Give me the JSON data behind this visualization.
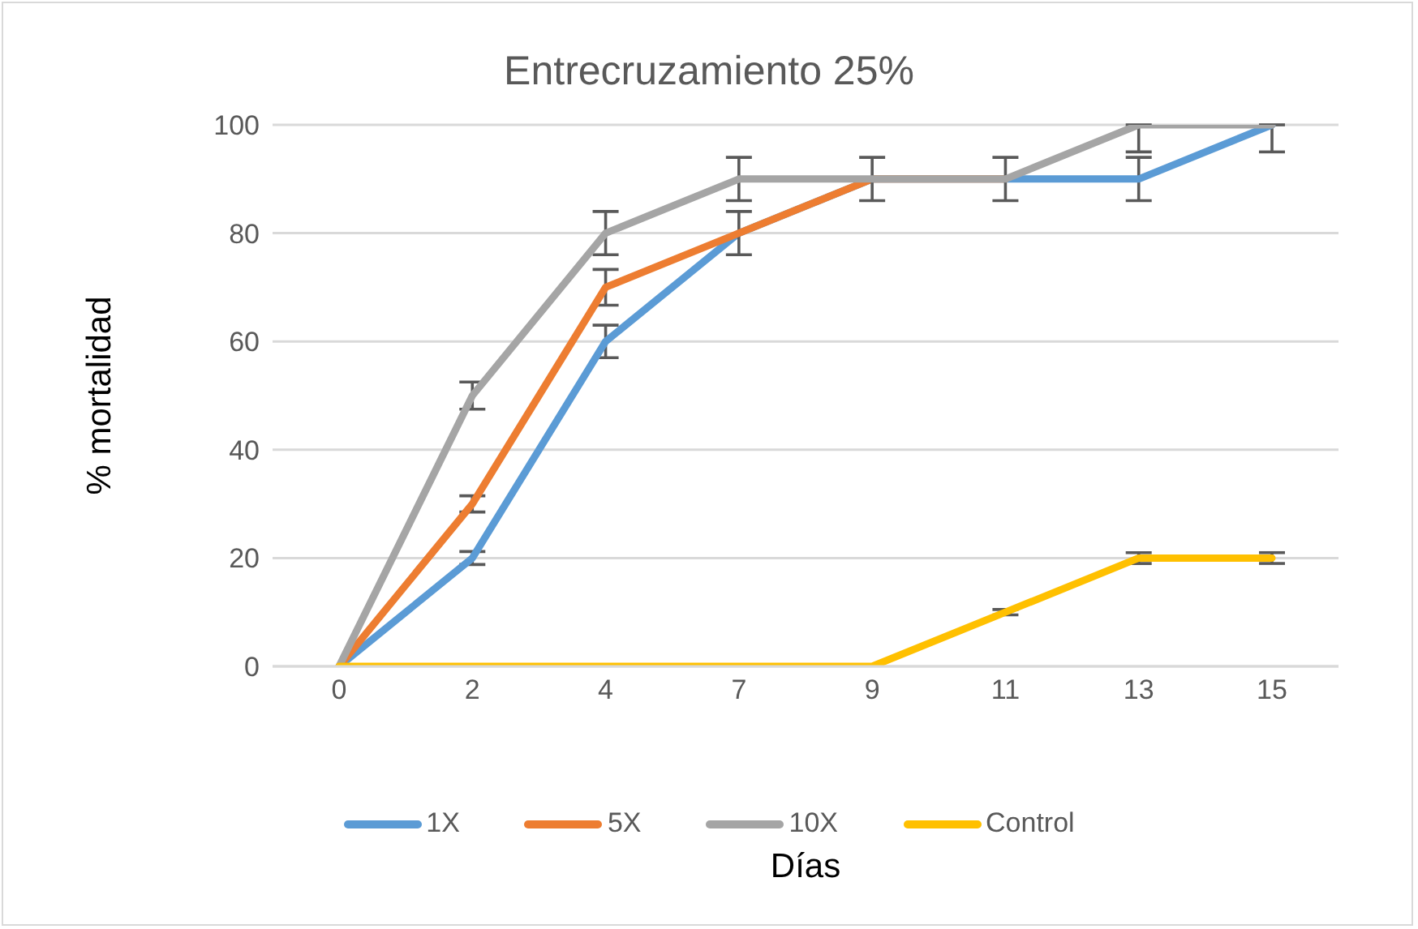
{
  "chart_data": {
    "type": "line",
    "title": "Entrecruzamiento 25%",
    "xlabel": "Días",
    "ylabel": "% mortalidad",
    "categories": [
      "0",
      "2",
      "4",
      "7",
      "9",
      "11",
      "13",
      "15"
    ],
    "series": [
      {
        "name": "1X",
        "color": "#5b9bd5",
        "values": [
          0,
          20,
          60,
          80,
          90,
          90,
          90,
          100
        ],
        "errors": [
          null,
          1.2,
          3,
          null,
          null,
          null,
          4,
          [
            95,
            100
          ]
        ]
      },
      {
        "name": "5X",
        "color": "#ed7d31",
        "values": [
          0,
          30,
          70,
          80,
          90,
          90,
          null,
          null
        ],
        "errors": [
          null,
          1.5,
          3.3,
          4,
          null,
          null,
          null,
          null
        ]
      },
      {
        "name": "10X",
        "color": "#a5a5a5",
        "values": [
          0,
          50,
          80,
          90,
          90,
          90,
          100,
          100
        ],
        "errors": [
          null,
          2.5,
          4,
          4,
          4,
          4,
          [
            95,
            100
          ],
          null
        ]
      },
      {
        "name": "Control",
        "color": "#ffc000",
        "values": [
          0,
          0,
          0,
          0,
          0,
          10,
          20,
          20
        ],
        "errors": [
          null,
          null,
          null,
          null,
          null,
          0.5,
          1,
          1
        ]
      }
    ],
    "ylim": [
      0,
      100
    ],
    "yticks": [
      0,
      20,
      40,
      60,
      80,
      100
    ],
    "grid": "y",
    "legend": "bottom",
    "marker": "none",
    "line_style": "solid"
  }
}
